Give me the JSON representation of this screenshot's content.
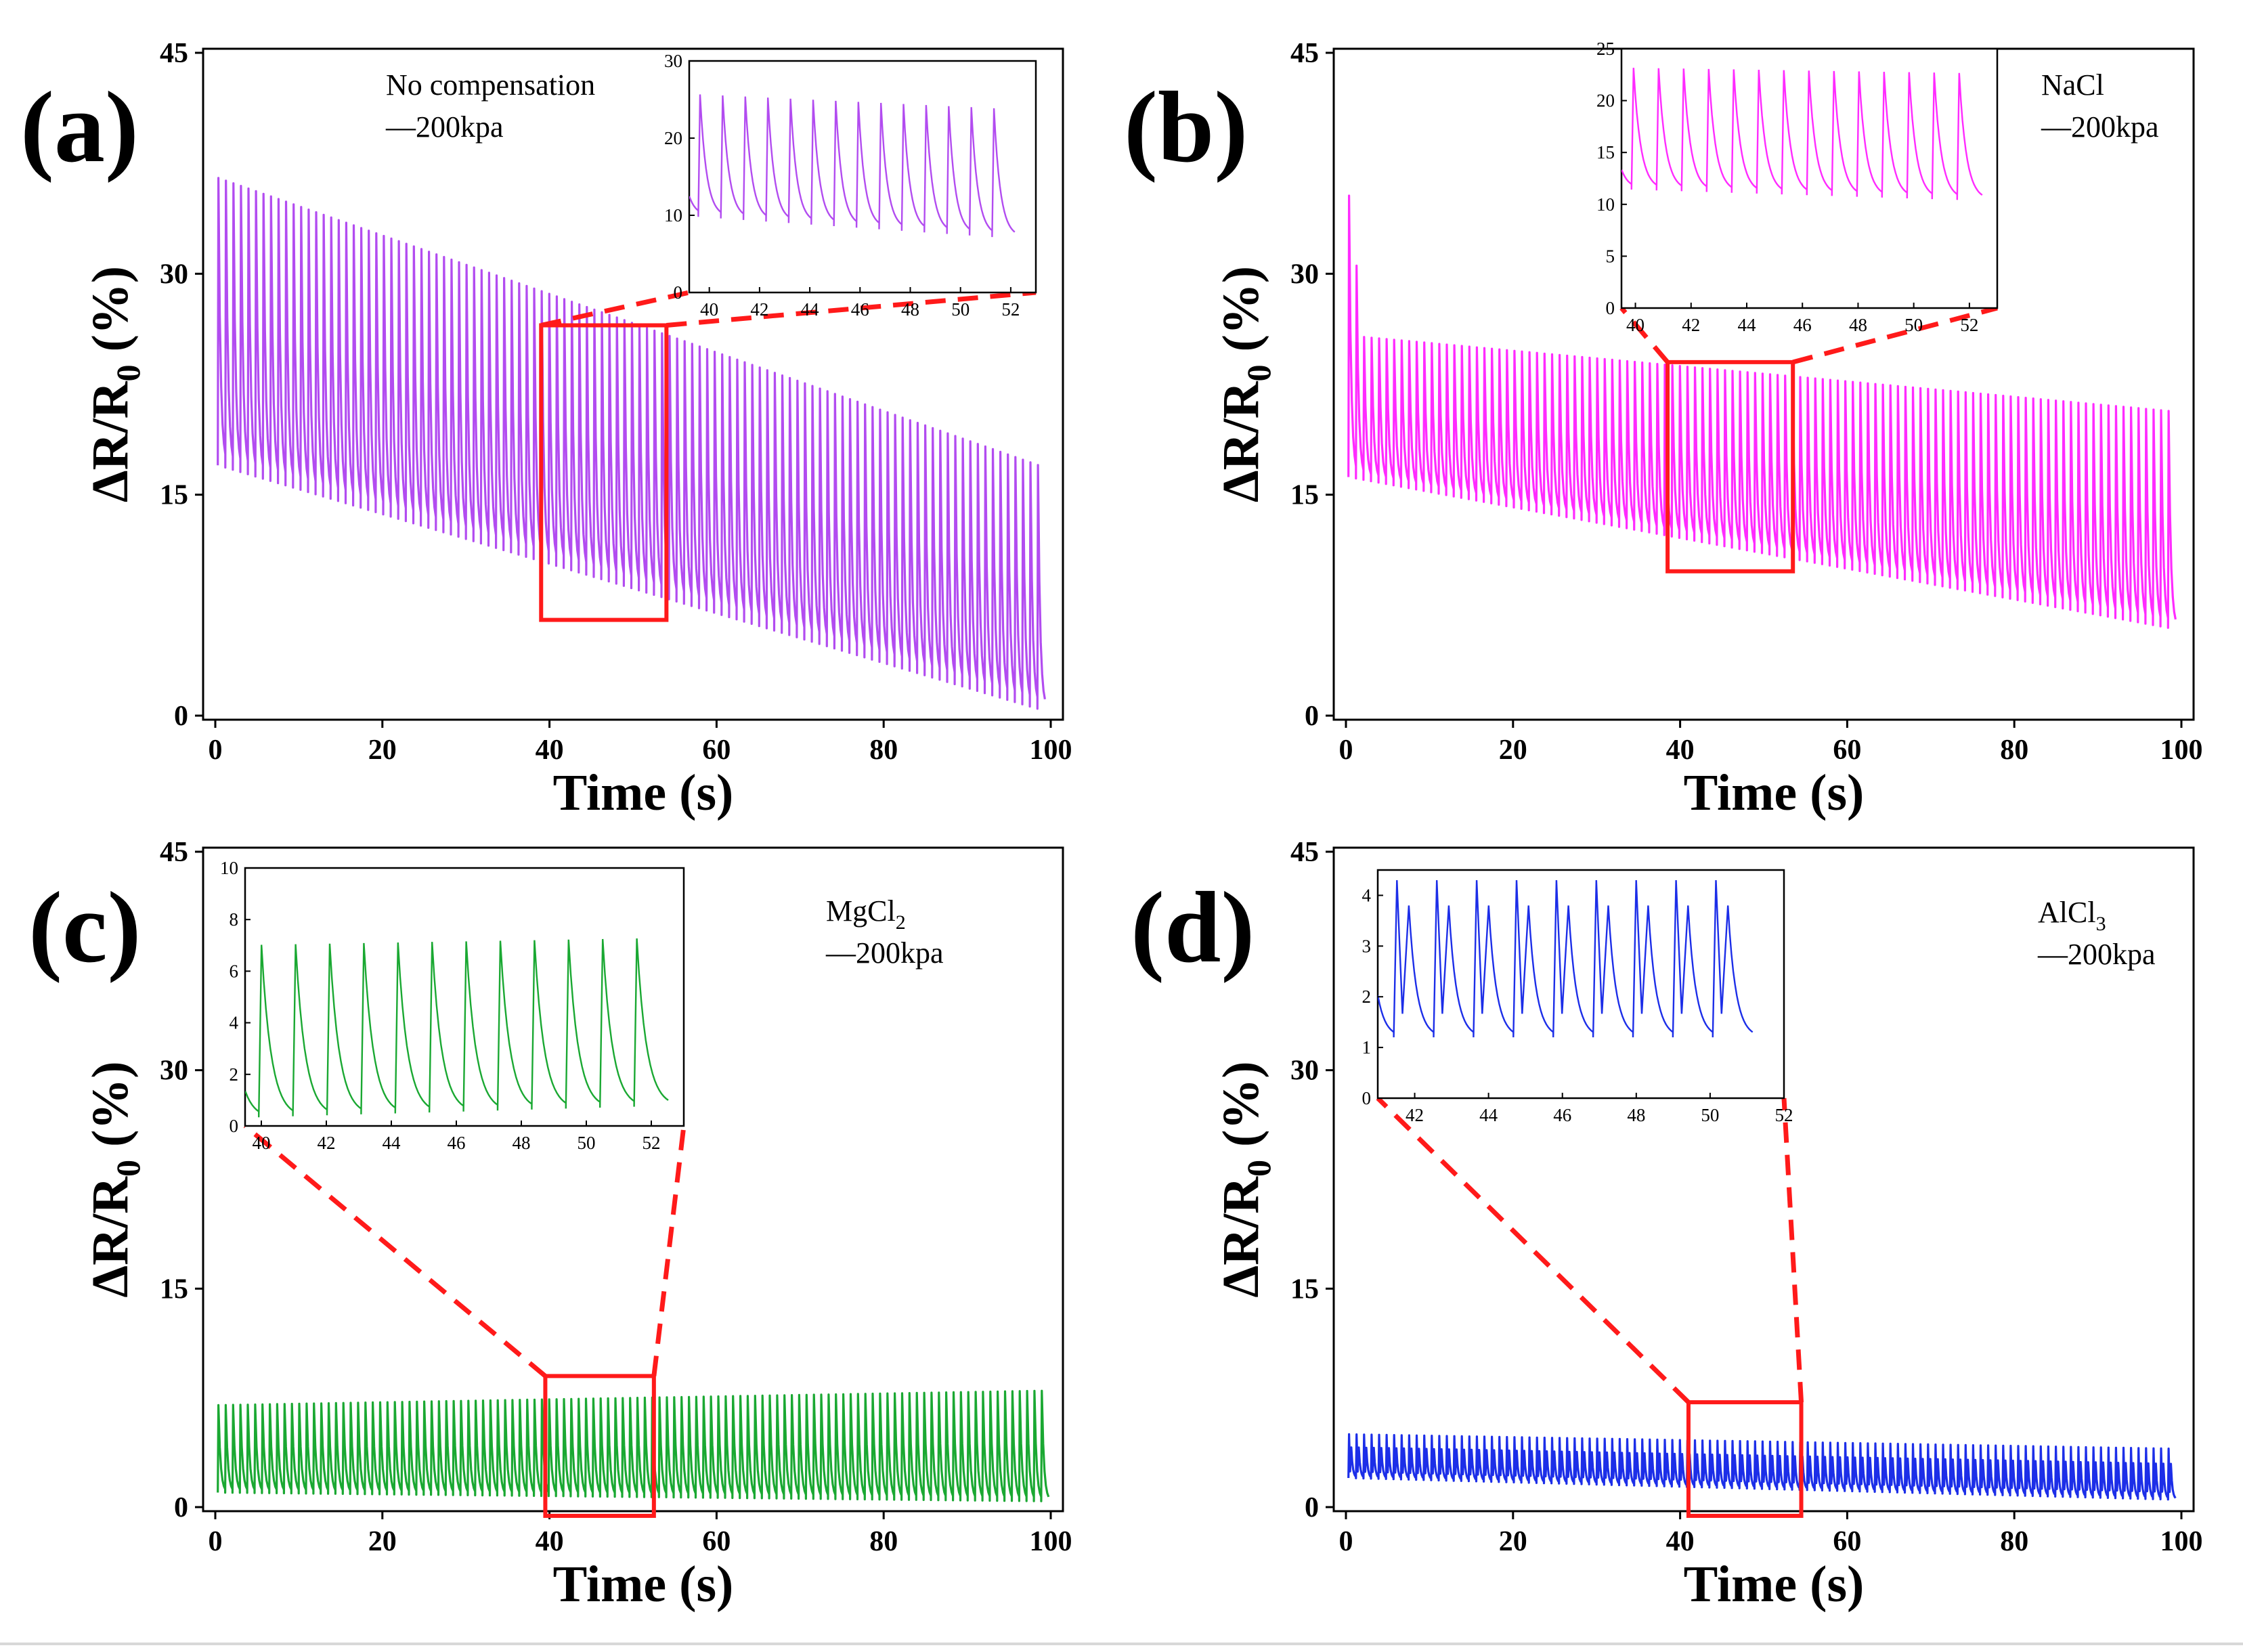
{
  "chart_data": [
    {
      "type": "line",
      "panel_label": "(a)",
      "legend_title": "No compensation",
      "legend_series": "—200kpa",
      "color": "#b24cf0",
      "xlabel": "Time (s)",
      "ylabel": "ΔR/R",
      "ylabel_subscript": "0",
      "ylabel_unit": " (%)",
      "xlim": [
        0,
        100
      ],
      "ylim": [
        0,
        45
      ],
      "xticks": [
        0,
        20,
        40,
        60,
        80,
        100
      ],
      "yticks": [
        0,
        15,
        30,
        45
      ],
      "series": [
        {
          "name": "No compensation",
          "period_s": 0.9,
          "peak_start": 36.5,
          "peak_end": 16.7,
          "valley_start": 17.0,
          "valley_end": 0.2,
          "first_peak": null,
          "double_peak": false
        }
      ],
      "zoom_box": {
        "x": [
          39,
          54
        ],
        "y": [
          6.5,
          26.5
        ]
      },
      "inset": {
        "xlim": [
          39.2,
          53
        ],
        "ylim": [
          0,
          30
        ],
        "xticks": [
          40,
          42,
          44,
          46,
          48,
          50,
          52
        ],
        "yticks": [
          0,
          10,
          20,
          30
        ],
        "peak_start": 25.8,
        "peak_end": 23.6,
        "valley_start": 10.0,
        "valley_end": 6.8,
        "period_s": 0.9
      }
    },
    {
      "type": "line",
      "panel_label": "(b)",
      "legend_title": "NaCl",
      "legend_series": "—200kpa",
      "color": "#ff2bff",
      "xlabel": "Time (s)",
      "ylabel": "ΔR/R",
      "ylabel_subscript": "0",
      "ylabel_unit": " (%)",
      "xlim": [
        0,
        100
      ],
      "ylim": [
        0,
        45
      ],
      "xticks": [
        0,
        20,
        40,
        60,
        80,
        100
      ],
      "yticks": [
        0,
        15,
        30,
        45
      ],
      "series": [
        {
          "name": "NaCl",
          "period_s": 0.9,
          "peak_start": 25.8,
          "peak_end": 20.6,
          "valley_start": 16.2,
          "valley_end": 5.8,
          "first_peak": 35.3,
          "double_peak": false
        }
      ],
      "zoom_box": {
        "x": [
          38.5,
          53.5
        ],
        "y": [
          9.8,
          24
        ]
      },
      "inset": {
        "xlim": [
          39.5,
          53
        ],
        "ylim": [
          0,
          25
        ],
        "xticks": [
          40,
          42,
          44,
          46,
          48,
          50,
          52
        ],
        "yticks": [
          0,
          5,
          10,
          15,
          20,
          25
        ],
        "peak_start": 23.2,
        "peak_end": 22.6,
        "valley_start": 11.5,
        "valley_end": 10.3,
        "period_s": 0.9
      }
    },
    {
      "type": "line",
      "panel_label": "(c)",
      "legend_title": "MgCl",
      "legend_title_subscript": "2",
      "legend_series": "—200kpa",
      "color": "#1aa832",
      "xlabel": "Time (s)",
      "ylabel": "ΔR/R",
      "ylabel_subscript": "0",
      "ylabel_unit": " (%)",
      "xlim": [
        0,
        100
      ],
      "ylim": [
        0,
        45
      ],
      "xticks": [
        0,
        20,
        40,
        60,
        80,
        100
      ],
      "yticks": [
        0,
        15,
        30,
        45
      ],
      "series": [
        {
          "name": "MgCl2",
          "period_s": 0.88,
          "peak_start": 7.0,
          "peak_end": 8.0,
          "valley_start": 1.0,
          "valley_end": 0.4,
          "first_peak": null,
          "double_peak": false
        }
      ],
      "zoom_box": {
        "x": [
          39.5,
          52.5
        ],
        "y": [
          -0.6,
          9
        ]
      },
      "inset": {
        "xlim": [
          39.5,
          53
        ],
        "ylim": [
          0,
          10
        ],
        "xticks": [
          40,
          42,
          44,
          46,
          48,
          50,
          52
        ],
        "yticks": [
          0,
          2,
          4,
          6,
          8,
          10
        ],
        "peak_start": 7.0,
        "peak_end": 7.3,
        "valley_start": 0.3,
        "valley_end": 0.8,
        "period_s": 1.05
      }
    },
    {
      "type": "line",
      "panel_label": "(d)",
      "legend_title": "AlCl",
      "legend_title_subscript": "3",
      "legend_series": "—200kpa",
      "color": "#1c2ee8",
      "xlabel": "Time (s)",
      "ylabel": "ΔR/R",
      "ylabel_subscript": "0",
      "ylabel_unit": " (%)",
      "xlim": [
        0,
        100
      ],
      "ylim": [
        0,
        45
      ],
      "xticks": [
        0,
        20,
        40,
        60,
        80,
        100
      ],
      "yticks": [
        0,
        15,
        30,
        45
      ],
      "series": [
        {
          "name": "AlCl3",
          "period_s": 0.9,
          "peak_start": 5.0,
          "peak_end": 4.0,
          "valley_start": 2.0,
          "valley_end": 0.5,
          "first_peak": null,
          "double_peak": true
        }
      ],
      "zoom_box": {
        "x": [
          41,
          54.5
        ],
        "y": [
          -0.6,
          7.2
        ]
      },
      "inset": {
        "xlim": [
          41,
          52
        ],
        "ylim": [
          0,
          4.5
        ],
        "xticks": [
          42,
          44,
          46,
          48,
          50,
          52
        ],
        "yticks": [
          0,
          1,
          2,
          3,
          4
        ],
        "peak_start": 4.3,
        "peak_end": 4.3,
        "valley_start": 1.2,
        "valley_end": 1.2,
        "second_peak": 3.8,
        "period_s": 1.08
      }
    }
  ]
}
